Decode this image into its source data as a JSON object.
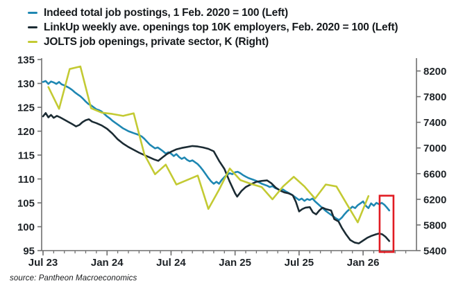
{
  "legend": {
    "items": [
      {
        "label": "Indeed total job postings, 1 Feb. 2020 = 100 (Left)",
        "color": "#1e87b2"
      },
      {
        "label": "LinkUp weekly ave. openings top 10K employers, Feb. 2020 = 100 (Left)",
        "color": "#1b2b33"
      },
      {
        "label": "JOLTS job openings, private sector, K (Right)",
        "color": "#c3ca33"
      }
    ]
  },
  "source_note": "source: Pantheon Macroeconomics",
  "chart_data": {
    "type": "line",
    "x_unit": "months since Jul 2023 (0 = Jul 23, 6 = Jan 24, 30 = Jan 26)",
    "x_axis": {
      "tick_labels": [
        "Jul 23",
        "Jan 24",
        "Jul 24",
        "Jan 25",
        "Jul 25",
        "Jan 26"
      ],
      "tick_months": [
        0,
        6,
        12,
        18,
        24,
        30
      ],
      "minor_tick_step": 1,
      "minor_tick_range": [
        0,
        34
      ]
    },
    "left_axis": {
      "min": 95,
      "max": 135,
      "step": 5,
      "ticks": [
        135,
        130,
        125,
        120,
        115,
        110,
        105,
        100,
        95
      ]
    },
    "right_axis": {
      "min": 5400,
      "max": 8200,
      "step": 400,
      "ticks": [
        8200,
        7800,
        7400,
        7000,
        6600,
        6200,
        5800,
        5400
      ]
    },
    "series": [
      {
        "name": "Indeed total job postings, 1 Feb. 2020 = 100",
        "id": "indeed",
        "axis": "left",
        "frequency": "weekly",
        "color": "#1e87b2",
        "points": [
          [
            0,
            130.3
          ],
          [
            0.25,
            130.5
          ],
          [
            0.5,
            129.9
          ],
          [
            0.75,
            130.4
          ],
          [
            1,
            130.2
          ],
          [
            1.25,
            129.9
          ],
          [
            1.5,
            130.3
          ],
          [
            1.75,
            129.8
          ],
          [
            2,
            129.6
          ],
          [
            2.25,
            129.3
          ],
          [
            2.5,
            129.0
          ],
          [
            2.75,
            128.6
          ],
          [
            3,
            128.1
          ],
          [
            3.25,
            127.7
          ],
          [
            3.5,
            127.3
          ],
          [
            3.75,
            126.8
          ],
          [
            4,
            126.2
          ],
          [
            4.25,
            125.7
          ],
          [
            4.5,
            125.4
          ],
          [
            4.75,
            125.0
          ],
          [
            5,
            124.6
          ],
          [
            5.25,
            124.4
          ],
          [
            5.5,
            124.1
          ],
          [
            5.75,
            123.6
          ],
          [
            6,
            123.1
          ],
          [
            6.25,
            122.7
          ],
          [
            6.5,
            122.2
          ],
          [
            6.75,
            121.8
          ],
          [
            7,
            121.4
          ],
          [
            7.25,
            121.0
          ],
          [
            7.5,
            120.6
          ],
          [
            7.75,
            120.3
          ],
          [
            8,
            120.0
          ],
          [
            8.25,
            119.8
          ],
          [
            8.5,
            119.6
          ],
          [
            8.75,
            119.4
          ],
          [
            9,
            119.2
          ],
          [
            9.25,
            118.9
          ],
          [
            9.5,
            118.4
          ],
          [
            9.75,
            117.8
          ],
          [
            10,
            117.2
          ],
          [
            10.25,
            116.8
          ],
          [
            10.5,
            116.4
          ],
          [
            10.75,
            116.6
          ],
          [
            11,
            116.2
          ],
          [
            11.25,
            115.8
          ],
          [
            11.5,
            115.3
          ],
          [
            11.75,
            115.6
          ],
          [
            12,
            115.3
          ],
          [
            12.25,
            114.8
          ],
          [
            12.5,
            115.2
          ],
          [
            12.75,
            114.6
          ],
          [
            13,
            114.2
          ],
          [
            13.25,
            114.5
          ],
          [
            13.5,
            114.0
          ],
          [
            13.75,
            113.7
          ],
          [
            14,
            113.9
          ],
          [
            14.25,
            113.5
          ],
          [
            14.5,
            113.1
          ],
          [
            14.75,
            112.5
          ],
          [
            15,
            111.8
          ],
          [
            15.25,
            111.0
          ],
          [
            15.5,
            110.2
          ],
          [
            15.75,
            109.5
          ],
          [
            16,
            109.0
          ],
          [
            16.25,
            109.4
          ],
          [
            16.5,
            109.0
          ],
          [
            16.75,
            109.8
          ],
          [
            17,
            110.4
          ],
          [
            17.25,
            110.9
          ],
          [
            17.5,
            111.2
          ],
          [
            17.75,
            111.0
          ],
          [
            18,
            111.4
          ],
          [
            18.25,
            111.5
          ],
          [
            18.5,
            111.2
          ],
          [
            18.75,
            110.8
          ],
          [
            19,
            110.5
          ],
          [
            19.25,
            110.2
          ],
          [
            19.5,
            110.0
          ],
          [
            19.75,
            109.8
          ],
          [
            20,
            109.6
          ],
          [
            20.25,
            109.3
          ],
          [
            20.5,
            109.0
          ],
          [
            20.75,
            108.8
          ],
          [
            21,
            108.6
          ],
          [
            21.25,
            108.3
          ],
          [
            21.5,
            108.5
          ],
          [
            21.75,
            108.1
          ],
          [
            22,
            107.9
          ],
          [
            22.25,
            107.6
          ],
          [
            22.5,
            107.8
          ],
          [
            22.75,
            107.4
          ],
          [
            23,
            107.1
          ],
          [
            23.25,
            106.8
          ],
          [
            23.5,
            106.4
          ],
          [
            23.75,
            106.0
          ],
          [
            24,
            105.6
          ],
          [
            24.25,
            105.9
          ],
          [
            24.5,
            105.4
          ],
          [
            24.75,
            105.8
          ],
          [
            25,
            105.6
          ],
          [
            25.25,
            105.9
          ],
          [
            25.5,
            105.3
          ],
          [
            25.75,
            104.8
          ],
          [
            26,
            104.3
          ],
          [
            26.25,
            103.8
          ],
          [
            26.5,
            103.3
          ],
          [
            26.75,
            102.9
          ],
          [
            27,
            102.5
          ],
          [
            27.25,
            102.1
          ],
          [
            27.5,
            101.7
          ],
          [
            27.75,
            101.4
          ],
          [
            28,
            101.9
          ],
          [
            28.25,
            102.6
          ],
          [
            28.5,
            103.2
          ],
          [
            28.75,
            103.7
          ],
          [
            29,
            104.2
          ],
          [
            29.25,
            103.9
          ],
          [
            29.5,
            104.5
          ],
          [
            29.75,
            104.9
          ],
          [
            30,
            105.3
          ],
          [
            30.25,
            104.4
          ],
          [
            30.5,
            103.9
          ],
          [
            30.75,
            104.9
          ],
          [
            31,
            104.4
          ],
          [
            31.25,
            105.0
          ],
          [
            31.5,
            104.7
          ],
          [
            31.75,
            105.0
          ],
          [
            32,
            104.6
          ],
          [
            32.2,
            104.1
          ],
          [
            32.45,
            103.4
          ]
        ]
      },
      {
        "name": "LinkUp weekly ave. openings top 10K employers, Feb. 2020 = 100",
        "id": "linkup",
        "axis": "left",
        "frequency": "weekly",
        "color": "#1b2b33",
        "points": [
          [
            0,
            123.1
          ],
          [
            0.25,
            123.8
          ],
          [
            0.5,
            122.9
          ],
          [
            0.75,
            123.4
          ],
          [
            1,
            122.8
          ],
          [
            1.3,
            123.2
          ],
          [
            1.6,
            122.9
          ],
          [
            2,
            122.4
          ],
          [
            2.4,
            121.9
          ],
          [
            2.8,
            121.4
          ],
          [
            3.1,
            121.0
          ],
          [
            3.4,
            121.3
          ],
          [
            3.7,
            121.9
          ],
          [
            4,
            122.3
          ],
          [
            4.3,
            122.5
          ],
          [
            4.6,
            122.0
          ],
          [
            5,
            121.7
          ],
          [
            5.5,
            121.2
          ],
          [
            6,
            120.5
          ],
          [
            6.5,
            119.5
          ],
          [
            7,
            118.3
          ],
          [
            7.5,
            117.4
          ],
          [
            8,
            116.7
          ],
          [
            8.5,
            116.1
          ],
          [
            9,
            115.5
          ],
          [
            9.5,
            115.0
          ],
          [
            10,
            114.5
          ],
          [
            10.4,
            114.1
          ],
          [
            10.8,
            113.8
          ],
          [
            11.2,
            114.5
          ],
          [
            11.6,
            115.2
          ],
          [
            12,
            115.7
          ],
          [
            12.5,
            116.2
          ],
          [
            13,
            116.5
          ],
          [
            13.5,
            116.7
          ],
          [
            14,
            116.9
          ],
          [
            14.5,
            116.8
          ],
          [
            15,
            116.6
          ],
          [
            15.5,
            116.3
          ],
          [
            16,
            115.8
          ],
          [
            16.5,
            113.8
          ],
          [
            17,
            112.1
          ],
          [
            17.5,
            109.4
          ],
          [
            18,
            107.0
          ],
          [
            18.2,
            106.3
          ],
          [
            18.6,
            107.5
          ],
          [
            19,
            108.3
          ],
          [
            19.5,
            108.9
          ],
          [
            20,
            109.4
          ],
          [
            20.5,
            109.6
          ],
          [
            21,
            109.7
          ],
          [
            21.4,
            109.1
          ],
          [
            21.8,
            108.2
          ],
          [
            22.2,
            107.6
          ],
          [
            22.6,
            107.2
          ],
          [
            23,
            107.0
          ],
          [
            23.4,
            106.6
          ],
          [
            23.7,
            105.2
          ],
          [
            24,
            103.2
          ],
          [
            24.3,
            103.7
          ],
          [
            24.6,
            104.0
          ],
          [
            25,
            104.1
          ],
          [
            25.3,
            103.0
          ],
          [
            25.6,
            102.6
          ],
          [
            25.9,
            103.4
          ],
          [
            26.2,
            104.0
          ],
          [
            26.5,
            103.7
          ],
          [
            27,
            103.4
          ],
          [
            27.3,
            101.6
          ],
          [
            27.7,
            101.1
          ],
          [
            28,
            99.8
          ],
          [
            28.4,
            98.4
          ],
          [
            28.8,
            97.2
          ],
          [
            29.2,
            96.7
          ],
          [
            29.6,
            96.5
          ],
          [
            30,
            97.1
          ],
          [
            30.4,
            97.7
          ],
          [
            30.8,
            98.1
          ],
          [
            31.2,
            98.4
          ],
          [
            31.5,
            98.6
          ],
          [
            31.8,
            98.4
          ],
          [
            32.1,
            97.9
          ],
          [
            32.45,
            97.0
          ]
        ]
      },
      {
        "name": "JOLTS job openings, private sector, K",
        "id": "jolts",
        "axis": "right",
        "frequency": "monthly (plotted mid-month)",
        "color": "#c3ca33",
        "points": [
          [
            0.5,
            7950
          ],
          [
            1.5,
            7610
          ],
          [
            2.5,
            8230
          ],
          [
            3.5,
            8270
          ],
          [
            4.5,
            7620
          ],
          [
            5.5,
            7550
          ],
          [
            6.5,
            7530
          ],
          [
            7.5,
            7500
          ],
          [
            8.5,
            7540
          ],
          [
            9.5,
            6900
          ],
          [
            10.5,
            6590
          ],
          [
            11.5,
            6740
          ],
          [
            12.5,
            6430
          ],
          [
            13.5,
            6500
          ],
          [
            14.5,
            6570
          ],
          [
            15.5,
            6050
          ],
          [
            16.5,
            6350
          ],
          [
            17.5,
            6680
          ],
          [
            18.5,
            6500
          ],
          [
            19.5,
            6440
          ],
          [
            20.5,
            6390
          ],
          [
            21.5,
            6200
          ],
          [
            22.5,
            6400
          ],
          [
            23.5,
            6550
          ],
          [
            24.5,
            6400
          ],
          [
            25.5,
            6210
          ],
          [
            26.5,
            6430
          ],
          [
            27.5,
            6400
          ],
          [
            28.5,
            6120
          ],
          [
            29.5,
            5840
          ],
          [
            30.5,
            6250
          ]
        ]
      }
    ],
    "highlight_box": {
      "color": "#e11b22",
      "month_start": 31.55,
      "month_end": 32.85,
      "top_value_left_scale": 106.5,
      "note": "red box highlighting most recent readings"
    }
  }
}
